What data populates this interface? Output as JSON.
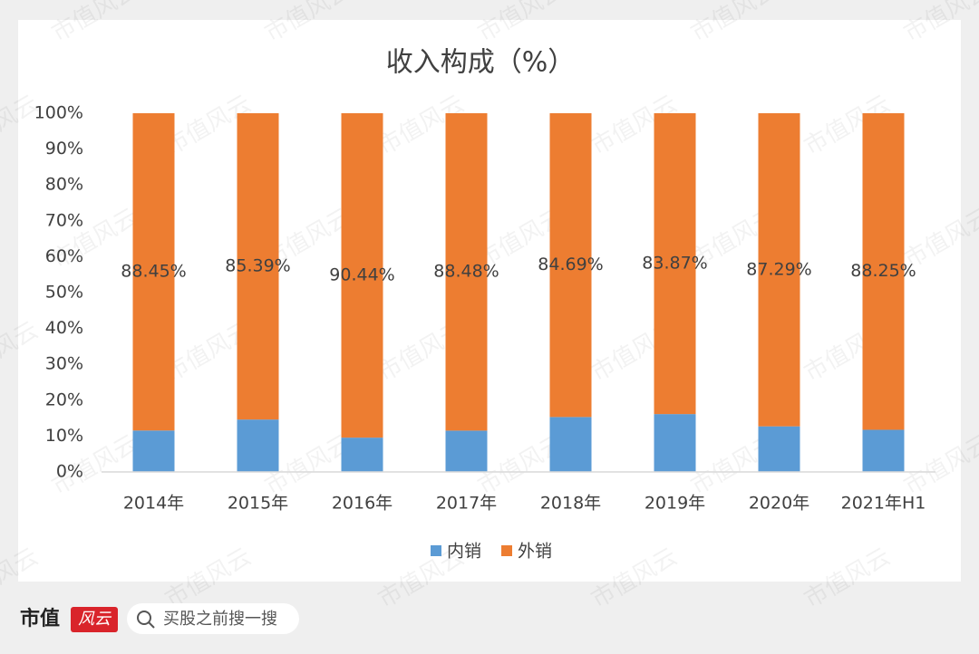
{
  "chart_data": {
    "type": "bar",
    "stacked": true,
    "title": "收入构成（%）",
    "categories": [
      "2014年",
      "2015年",
      "2016年",
      "2017年",
      "2018年",
      "2019年",
      "2020年",
      "2021年H1"
    ],
    "series": [
      {
        "name": "内销",
        "color": "#5b9bd5",
        "values": [
          11.55,
          14.61,
          9.56,
          11.52,
          15.31,
          16.13,
          12.71,
          11.75
        ]
      },
      {
        "name": "外销",
        "color": "#ed7d31",
        "values": [
          88.45,
          85.39,
          90.44,
          88.48,
          84.69,
          83.87,
          87.29,
          88.25
        ],
        "value_labels": [
          "88.45%",
          "85.39%",
          "90.44%",
          "88.48%",
          "84.69%",
          "83.87%",
          "87.29%",
          "88.25%"
        ]
      }
    ],
    "ylim": [
      0,
      100
    ],
    "yticks": [
      {
        "value": 0,
        "label": "0%"
      },
      {
        "value": 10,
        "label": "10%"
      },
      {
        "value": 20,
        "label": "20%"
      },
      {
        "value": 30,
        "label": "30%"
      },
      {
        "value": 40,
        "label": "40%"
      },
      {
        "value": 50,
        "label": "50%"
      },
      {
        "value": 60,
        "label": "60%"
      },
      {
        "value": 70,
        "label": "70%"
      },
      {
        "value": 80,
        "label": "80%"
      },
      {
        "value": 90,
        "label": "90%"
      },
      {
        "value": 100,
        "label": "100%"
      }
    ],
    "grid": false,
    "legend": "bottom"
  },
  "footer": {
    "brand": "市值",
    "brand_mark": "风云",
    "search": "买股之前搜一搜"
  },
  "watermark": "市值风云"
}
